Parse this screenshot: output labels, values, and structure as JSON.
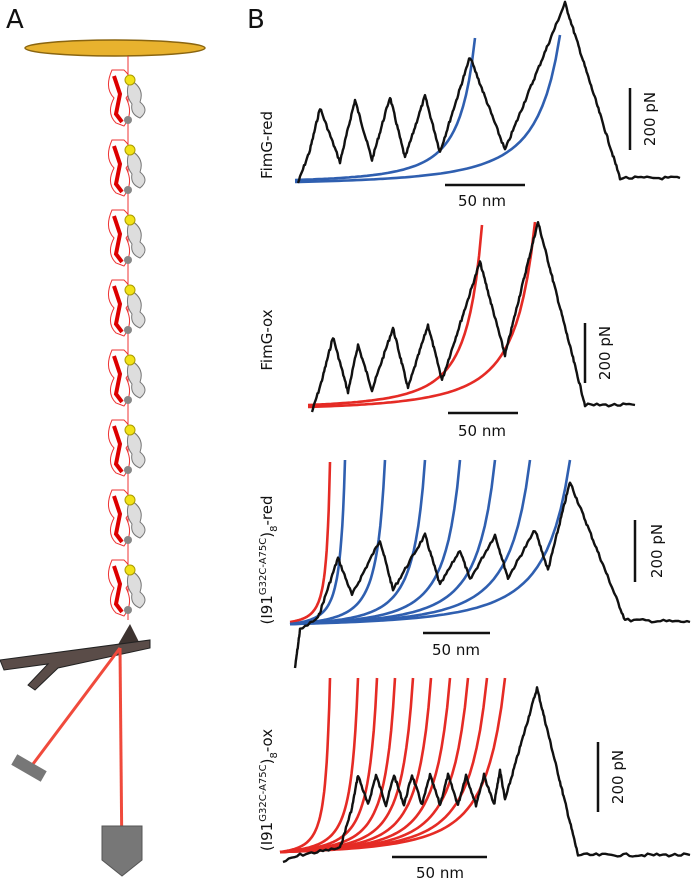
{
  "panels": {
    "a": {
      "label": "A"
    },
    "b": {
      "label": "B",
      "traces": [
        {
          "label": "FimG-red",
          "force_scale": "200 pN",
          "distance_scale": "50 nm"
        },
        {
          "label": "FimG-ox",
          "force_scale": "200 pN",
          "distance_scale": "50 nm"
        },
        {
          "label": {
            "prefix": "(I91",
            "superscript": "G32C-A75C",
            "close": ")",
            "subscript": "8",
            "suffix": "-red"
          },
          "force_scale": "200 pN",
          "distance_scale": "50 nm"
        },
        {
          "label": {
            "prefix": "(I91",
            "superscript": "G32C-A75C",
            "close": ")",
            "subscript": "8",
            "suffix": "-ox"
          },
          "force_scale": "200 pN",
          "distance_scale": "50 nm"
        }
      ]
    }
  }
}
